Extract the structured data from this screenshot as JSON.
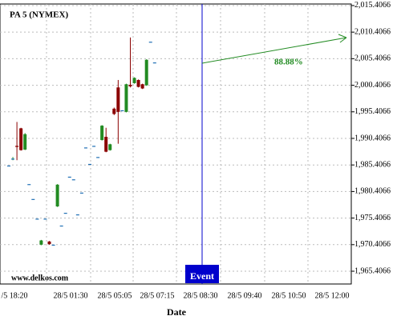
{
  "chart_data": {
    "type": "candlestick",
    "title": "PA 5 (NYMEX)",
    "watermark": "www.delkos.com",
    "x_label": "Date",
    "x_tick_labels": [
      "/5 18:20",
      "28/5 01:30",
      "28/5 05:05",
      "28/5 07:15",
      "28/5 08:30",
      "28/5 09:40",
      "28/5 10:50",
      "28/5 12:00"
    ],
    "open": [
      1985.3,
      1986.6,
      1989.0,
      1992.3,
      1988.3,
      1981.8,
      1979.0,
      1975.3,
      1970.4,
      1975.3,
      1971.0,
      1970.4,
      1977.6,
      1974.0,
      1976.4,
      1983.2,
      1982.7,
      1976.1,
      1980.2,
      1988.7,
      1985.6,
      1989.0,
      1986.9,
      1990.1,
      1990.7,
      1988.2,
      1996.0,
      2000.0,
      1995.7,
      1995.4,
      2000.5,
      2000.8,
      2001.4,
      2000.6,
      2000.4,
      2008.6,
      2004.7
    ],
    "high": [
      1985.3,
      1986.9,
      1993.5,
      1992.4,
      1991.4,
      1981.8,
      1979.0,
      1975.3,
      1971.3,
      1975.3,
      1971.1,
      1970.4,
      1981.8,
      1974.0,
      1976.4,
      1983.2,
      1982.7,
      1976.1,
      1980.2,
      1988.7,
      1985.6,
      1989.0,
      1986.9,
      1992.9,
      1992.4,
      1989.4,
      1996.2,
      2001.4,
      1995.7,
      2000.7,
      2009.4,
      2001.9,
      2001.5,
      2000.7,
      2005.3,
      2008.6,
      2004.7
    ],
    "low": [
      1985.3,
      1986.3,
      1986.3,
      1988.1,
      1988.2,
      1981.8,
      1979.0,
      1975.3,
      1970.3,
      1975.3,
      1970.4,
      1970.4,
      1977.5,
      1974.0,
      1976.4,
      1983.2,
      1982.7,
      1976.1,
      1980.2,
      1988.7,
      1985.6,
      1989.0,
      1986.9,
      1990.0,
      1987.8,
      1988.1,
      1994.8,
      1989.4,
      1995.7,
      1995.3,
      2000.0,
      2000.7,
      2000.0,
      1999.7,
      2000.3,
      2008.6,
      2004.7
    ],
    "close": [
      1985.3,
      1986.6,
      1988.8,
      1988.2,
      1991.2,
      1981.8,
      1979.0,
      1975.3,
      1971.2,
      1975.3,
      1970.5,
      1970.4,
      1981.7,
      1974.0,
      1976.4,
      1983.2,
      1982.7,
      1976.1,
      1980.2,
      1988.7,
      1985.6,
      1989.0,
      1986.9,
      1992.8,
      1987.9,
      1989.3,
      1995.0,
      1995.4,
      1995.7,
      2000.6,
      2000.2,
      2001.8,
      2000.1,
      1999.8,
      2005.2,
      2008.6,
      2004.7
    ],
    "up_color": "#228b22",
    "down_color": "#8b0000",
    "ylim": [
      1963.0,
      2015.7
    ],
    "yticks": [
      {
        "value": 1965.4066,
        "label": "1,965.4066"
      },
      {
        "value": 1970.4066,
        "label": "1,970.4066"
      },
      {
        "value": 1975.4066,
        "label": "1,975.4066"
      },
      {
        "value": 1980.4066,
        "label": "1,980.4066"
      },
      {
        "value": 1985.4066,
        "label": "1,985.4066"
      },
      {
        "value": 1990.4066,
        "label": "1,990.4066"
      },
      {
        "value": 1995.4066,
        "label": "1,995.4066"
      },
      {
        "value": 2000.4066,
        "label": "2,000.4066"
      },
      {
        "value": 2005.4066,
        "label": "2,005.4066"
      },
      {
        "value": 2010.4066,
        "label": "2,010.4066"
      },
      {
        "value": 2015.4066,
        "label": "2,015.4066"
      }
    ],
    "grid": true,
    "event_label": "Event",
    "event_color": "#0000cc",
    "arrow_label": "88.88%",
    "arrow_color": "#228b22"
  }
}
